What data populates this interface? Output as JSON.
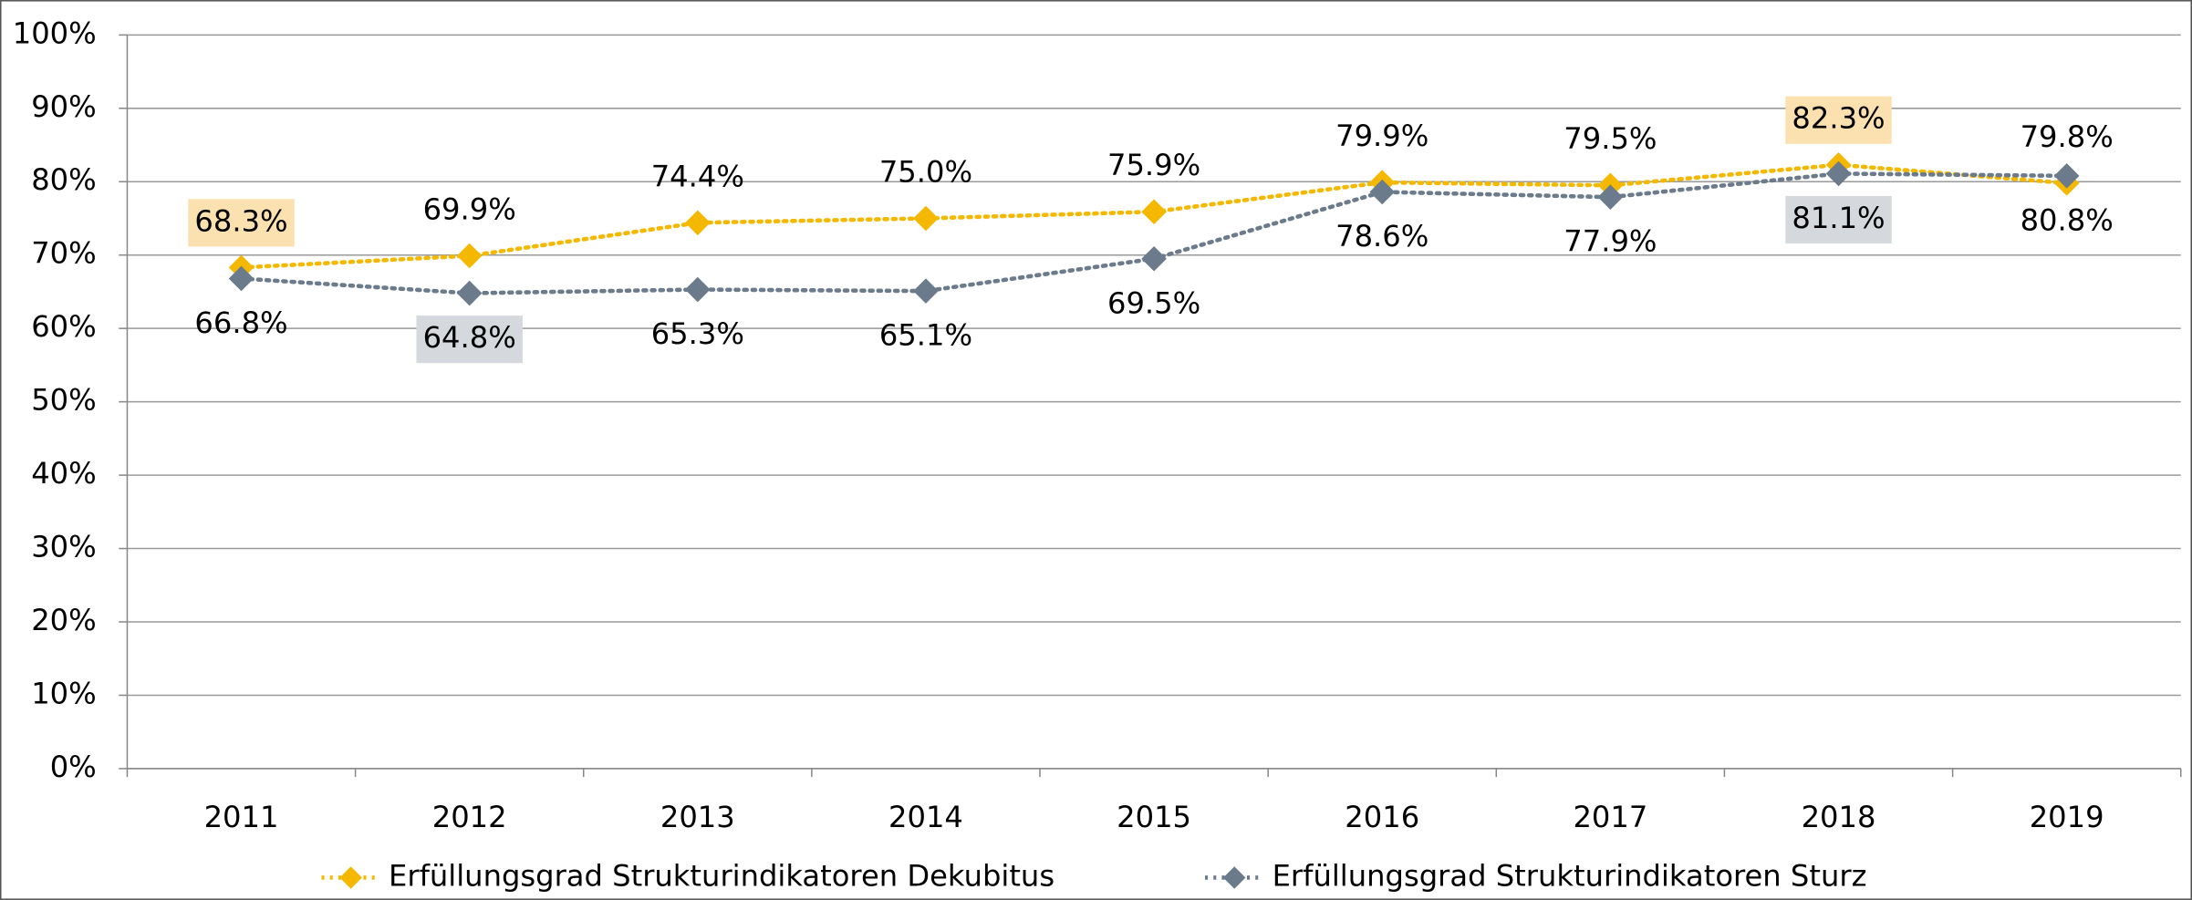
{
  "chart_data": {
    "type": "line",
    "categories": [
      "2011",
      "2012",
      "2013",
      "2014",
      "2015",
      "2016",
      "2017",
      "2018",
      "2019"
    ],
    "series": [
      {
        "name": "Erfüllungsgrad Strukturindikatoren Dekubitus",
        "color": "#f5b800",
        "highlight_color": "#fbe0b0",
        "values": [
          68.3,
          69.9,
          74.4,
          75.0,
          75.9,
          79.9,
          79.5,
          82.3,
          79.8
        ],
        "value_labels": [
          "68.3%",
          "69.9%",
          "74.4%",
          "75.0%",
          "75.9%",
          "79.9%",
          "79.5%",
          "82.3%",
          "79.8%"
        ],
        "highlighted": [
          0,
          7
        ]
      },
      {
        "name": "Erfüllungsgrad Strukturindikatoren Sturz",
        "color": "#6b7b8c",
        "highlight_color": "#d5d9de",
        "values": [
          66.8,
          64.8,
          65.3,
          65.1,
          69.5,
          78.6,
          77.9,
          81.1,
          80.8
        ],
        "value_labels": [
          "66.8%",
          "64.8%",
          "65.3%",
          "65.1%",
          "69.5%",
          "78.6%",
          "77.9%",
          "81.1%",
          "80.8%"
        ],
        "highlighted": [
          1,
          7
        ]
      }
    ],
    "ylim": [
      0,
      100
    ],
    "yticks": [
      {
        "value": 0,
        "label": "0%"
      },
      {
        "value": 10,
        "label": "10%"
      },
      {
        "value": 20,
        "label": "20%"
      },
      {
        "value": 30,
        "label": "30%"
      },
      {
        "value": 40,
        "label": "40%"
      },
      {
        "value": 50,
        "label": "50%"
      },
      {
        "value": 60,
        "label": "60%"
      },
      {
        "value": 70,
        "label": "70%"
      },
      {
        "value": 80,
        "label": "80%"
      },
      {
        "value": 90,
        "label": "90%"
      },
      {
        "value": 100,
        "label": "100%"
      }
    ],
    "grid": true,
    "legend": "bottom"
  }
}
